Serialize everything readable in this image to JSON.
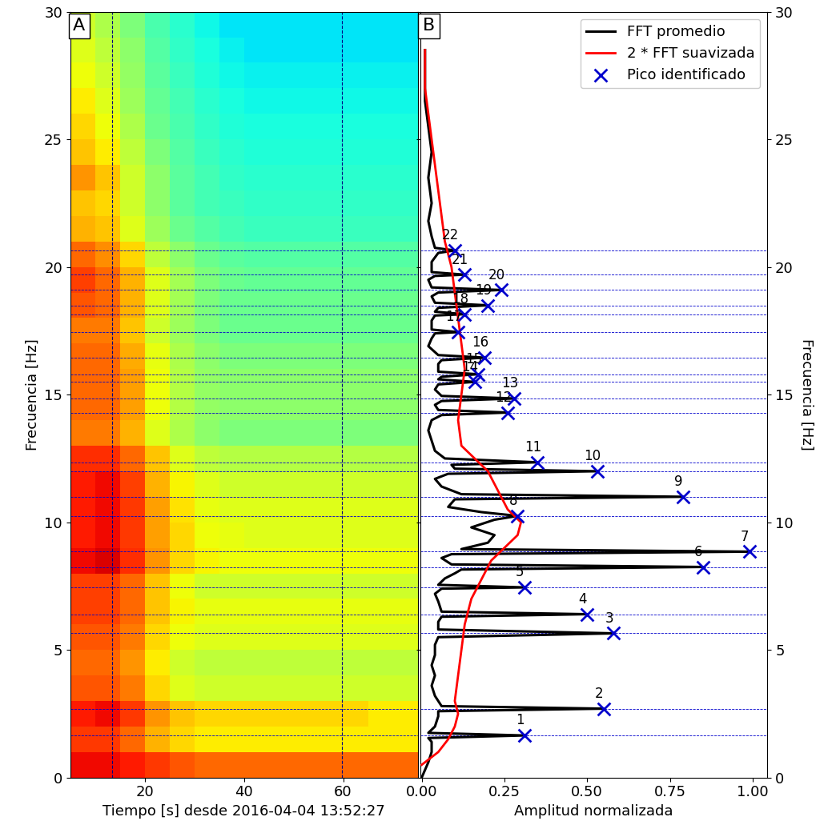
{
  "chart_data": [
    {
      "type": "heatmap",
      "panel_label": "A",
      "xlabel": "Tiempo [s] desde 2016-04-04 13:52:27",
      "ylabel": "Frecuencia [Hz]",
      "xlim": [
        5,
        75
      ],
      "xticks": [
        20,
        40,
        60
      ],
      "ylim": [
        0,
        30
      ],
      "yticks": [
        0,
        5,
        10,
        15,
        20,
        25,
        30
      ],
      "time_edges": [
        5,
        10,
        15,
        20,
        25,
        30,
        35,
        40,
        45,
        50,
        55,
        60,
        65,
        70,
        75
      ],
      "frequency_edges": [
        0,
        1,
        2,
        3,
        4,
        5,
        6,
        7,
        8,
        9,
        10,
        11,
        12,
        13,
        14,
        15,
        16,
        17,
        18,
        19,
        20,
        21,
        22,
        23,
        24,
        25,
        26,
        27,
        28,
        29,
        30
      ],
      "color_range": [
        0,
        1
      ],
      "window": [
        13.4,
        59.7
      ],
      "cells": [
        [
          0.9,
          0.9,
          0.88,
          0.85,
          0.82,
          0.8,
          0.8,
          0.8,
          0.8,
          0.8,
          0.8,
          0.8,
          0.8,
          0.8
        ],
        [
          0.85,
          0.85,
          0.8,
          0.72,
          0.68,
          0.66,
          0.66,
          0.66,
          0.66,
          0.66,
          0.66,
          0.66,
          0.66,
          0.66
        ],
        [
          0.88,
          0.9,
          0.85,
          0.75,
          0.7,
          0.68,
          0.68,
          0.68,
          0.68,
          0.68,
          0.68,
          0.68,
          0.66,
          0.66
        ],
        [
          0.82,
          0.82,
          0.78,
          0.68,
          0.62,
          0.6,
          0.6,
          0.6,
          0.6,
          0.6,
          0.6,
          0.6,
          0.6,
          0.6
        ],
        [
          0.8,
          0.8,
          0.75,
          0.66,
          0.6,
          0.58,
          0.58,
          0.58,
          0.58,
          0.58,
          0.58,
          0.58,
          0.58,
          0.58
        ],
        [
          0.82,
          0.82,
          0.78,
          0.68,
          0.64,
          0.62,
          0.62,
          0.62,
          0.62,
          0.62,
          0.62,
          0.62,
          0.62,
          0.62
        ],
        [
          0.84,
          0.84,
          0.8,
          0.7,
          0.65,
          0.63,
          0.63,
          0.63,
          0.63,
          0.63,
          0.63,
          0.63,
          0.63,
          0.63
        ],
        [
          0.84,
          0.84,
          0.8,
          0.7,
          0.64,
          0.6,
          0.6,
          0.6,
          0.6,
          0.6,
          0.6,
          0.6,
          0.6,
          0.6
        ],
        [
          0.9,
          0.92,
          0.86,
          0.75,
          0.68,
          0.65,
          0.64,
          0.64,
          0.64,
          0.64,
          0.64,
          0.64,
          0.64,
          0.64
        ],
        [
          0.88,
          0.9,
          0.85,
          0.74,
          0.68,
          0.64,
          0.63,
          0.62,
          0.62,
          0.62,
          0.62,
          0.62,
          0.62,
          0.62
        ],
        [
          0.88,
          0.9,
          0.85,
          0.74,
          0.67,
          0.63,
          0.62,
          0.62,
          0.62,
          0.62,
          0.62,
          0.62,
          0.62,
          0.62
        ],
        [
          0.88,
          0.9,
          0.84,
          0.72,
          0.65,
          0.62,
          0.6,
          0.6,
          0.6,
          0.6,
          0.6,
          0.6,
          0.6,
          0.6
        ],
        [
          0.86,
          0.86,
          0.8,
          0.7,
          0.62,
          0.58,
          0.57,
          0.57,
          0.57,
          0.57,
          0.57,
          0.57,
          0.57,
          0.57
        ],
        [
          0.78,
          0.78,
          0.72,
          0.62,
          0.56,
          0.52,
          0.5,
          0.5,
          0.5,
          0.5,
          0.5,
          0.5,
          0.5,
          0.5
        ],
        [
          0.8,
          0.8,
          0.74,
          0.64,
          0.57,
          0.53,
          0.52,
          0.52,
          0.52,
          0.52,
          0.52,
          0.52,
          0.52,
          0.52
        ],
        [
          0.8,
          0.8,
          0.74,
          0.64,
          0.57,
          0.53,
          0.52,
          0.52,
          0.52,
          0.52,
          0.52,
          0.52,
          0.52,
          0.52
        ],
        [
          0.8,
          0.8,
          0.73,
          0.63,
          0.56,
          0.52,
          0.5,
          0.5,
          0.5,
          0.5,
          0.5,
          0.5,
          0.5,
          0.5
        ],
        [
          0.78,
          0.78,
          0.7,
          0.6,
          0.54,
          0.5,
          0.48,
          0.48,
          0.48,
          0.48,
          0.48,
          0.48,
          0.48,
          0.48
        ],
        [
          0.82,
          0.8,
          0.72,
          0.62,
          0.55,
          0.5,
          0.48,
          0.48,
          0.48,
          0.48,
          0.48,
          0.48,
          0.48,
          0.48
        ],
        [
          0.84,
          0.8,
          0.72,
          0.62,
          0.55,
          0.5,
          0.48,
          0.47,
          0.47,
          0.47,
          0.47,
          0.47,
          0.47,
          0.47
        ],
        [
          0.8,
          0.76,
          0.68,
          0.58,
          0.52,
          0.48,
          0.46,
          0.45,
          0.45,
          0.45,
          0.45,
          0.45,
          0.45,
          0.45
        ],
        [
          0.72,
          0.7,
          0.62,
          0.54,
          0.48,
          0.45,
          0.43,
          0.42,
          0.42,
          0.42,
          0.42,
          0.42,
          0.42,
          0.42
        ],
        [
          0.7,
          0.68,
          0.6,
          0.52,
          0.46,
          0.43,
          0.42,
          0.41,
          0.41,
          0.41,
          0.41,
          0.41,
          0.41,
          0.41
        ],
        [
          0.75,
          0.7,
          0.6,
          0.52,
          0.46,
          0.43,
          0.41,
          0.4,
          0.4,
          0.4,
          0.4,
          0.4,
          0.4,
          0.4
        ],
        [
          0.7,
          0.66,
          0.58,
          0.5,
          0.45,
          0.42,
          0.4,
          0.39,
          0.39,
          0.39,
          0.39,
          0.39,
          0.39,
          0.39
        ],
        [
          0.68,
          0.64,
          0.56,
          0.48,
          0.44,
          0.41,
          0.39,
          0.38,
          0.38,
          0.38,
          0.38,
          0.38,
          0.38,
          0.38
        ],
        [
          0.66,
          0.62,
          0.54,
          0.47,
          0.43,
          0.4,
          0.38,
          0.37,
          0.37,
          0.37,
          0.37,
          0.37,
          0.37,
          0.37
        ],
        [
          0.64,
          0.6,
          0.53,
          0.46,
          0.42,
          0.39,
          0.37,
          0.36,
          0.36,
          0.36,
          0.36,
          0.36,
          0.36,
          0.36
        ],
        [
          0.62,
          0.58,
          0.52,
          0.45,
          0.41,
          0.38,
          0.36,
          0.35,
          0.35,
          0.35,
          0.35,
          0.35,
          0.35,
          0.35
        ],
        [
          0.6,
          0.56,
          0.5,
          0.44,
          0.4,
          0.37,
          0.35,
          0.35,
          0.35,
          0.35,
          0.35,
          0.35,
          0.35,
          0.35
        ]
      ]
    },
    {
      "type": "line",
      "orientation": "horizontal",
      "panel_label": "B",
      "xlabel": "Amplitud normalizada",
      "ylabel": "Frecuencia [Hz]",
      "xlim": [
        -0.005,
        1.045
      ],
      "xticks": [
        {
          "value": 0,
          "label": "0.00"
        },
        {
          "value": 0.25,
          "label": "0.25"
        },
        {
          "value": 0.5,
          "label": "0.50"
        },
        {
          "value": 0.75,
          "label": "0.75"
        },
        {
          "value": 1,
          "label": "1.00"
        }
      ],
      "ylim": [
        0,
        30
      ],
      "yticks": [
        0,
        5,
        10,
        15,
        20,
        25,
        30
      ],
      "legend": "upper right",
      "series": [
        {
          "name": "FFT promedio",
          "type": "line",
          "color": "#000000",
          "line_style": "solid",
          "frequency": [
            0.0,
            0.3,
            0.6,
            1.0,
            1.4,
            1.55,
            1.65,
            1.75,
            2.0,
            2.4,
            2.6,
            2.7,
            2.8,
            3.2,
            3.6,
            4.0,
            4.4,
            4.8,
            5.2,
            5.5,
            5.65,
            5.8,
            6.1,
            6.3,
            6.4,
            6.5,
            6.9,
            7.2,
            7.4,
            7.45,
            7.55,
            7.8,
            8.0,
            8.15,
            8.25,
            8.35,
            8.6,
            8.75,
            8.85,
            8.95,
            9.2,
            9.5,
            9.8,
            10.1,
            10.25,
            10.4,
            10.6,
            10.9,
            11.0,
            11.1,
            11.4,
            11.7,
            11.9,
            12.0,
            12.1,
            12.25,
            12.35,
            12.5,
            12.8,
            13.2,
            13.6,
            14.0,
            14.2,
            14.3,
            14.4,
            14.6,
            14.75,
            14.85,
            14.95,
            15.2,
            15.4,
            15.5,
            15.6,
            15.7,
            15.8,
            15.9,
            16.2,
            16.35,
            16.45,
            16.55,
            16.9,
            17.2,
            17.4,
            17.45,
            17.55,
            17.9,
            18.1,
            18.15,
            18.25,
            18.4,
            18.5,
            18.6,
            18.85,
            19.0,
            19.1,
            19.2,
            19.5,
            19.65,
            19.7,
            19.8,
            20.2,
            20.55,
            20.65,
            20.75,
            21.2,
            21.8,
            22.5,
            23.5,
            24.5,
            25.5,
            26.5,
            27.5,
            28.5
          ],
          "values": [
            0.0,
            0.01,
            0.02,
            0.03,
            0.03,
            0.02,
            0.31,
            0.02,
            0.04,
            0.05,
            0.05,
            0.55,
            0.06,
            0.04,
            0.03,
            0.04,
            0.03,
            0.04,
            0.04,
            0.05,
            0.58,
            0.05,
            0.05,
            0.06,
            0.5,
            0.06,
            0.05,
            0.04,
            0.06,
            0.31,
            0.05,
            0.07,
            0.1,
            0.12,
            0.85,
            0.09,
            0.06,
            0.09,
            0.99,
            0.12,
            0.2,
            0.22,
            0.15,
            0.22,
            0.29,
            0.18,
            0.08,
            0.1,
            0.79,
            0.12,
            0.06,
            0.04,
            0.08,
            0.53,
            0.1,
            0.09,
            0.35,
            0.07,
            0.04,
            0.03,
            0.02,
            0.03,
            0.06,
            0.26,
            0.05,
            0.04,
            0.06,
            0.28,
            0.06,
            0.04,
            0.05,
            0.16,
            0.05,
            0.06,
            0.17,
            0.05,
            0.05,
            0.06,
            0.19,
            0.05,
            0.02,
            0.03,
            0.04,
            0.11,
            0.03,
            0.03,
            0.04,
            0.13,
            0.04,
            0.05,
            0.2,
            0.04,
            0.03,
            0.05,
            0.24,
            0.03,
            0.02,
            0.04,
            0.13,
            0.03,
            0.03,
            0.05,
            0.1,
            0.04,
            0.03,
            0.02,
            0.03,
            0.02,
            0.03,
            0.02,
            0.01,
            0.01,
            0.01
          ]
        },
        {
          "name": "2 * FFT suavizada",
          "type": "line",
          "color": "#ff0000",
          "line_style": "solid",
          "frequency": [
            0.5,
            1.0,
            1.5,
            2.0,
            2.5,
            3.0,
            4.0,
            5.0,
            6.0,
            7.0,
            7.5,
            8.0,
            8.5,
            9.0,
            9.5,
            10.0,
            10.5,
            11.0,
            11.5,
            12.0,
            12.5,
            13.0,
            14.0,
            15.0,
            16.0,
            17.0,
            18.0,
            19.0,
            20.0,
            21.0,
            22.0,
            23.0,
            24.0,
            25.0,
            26.0,
            27.0,
            28.5
          ],
          "values": [
            0.0,
            0.05,
            0.08,
            0.1,
            0.11,
            0.1,
            0.11,
            0.12,
            0.13,
            0.15,
            0.17,
            0.19,
            0.21,
            0.25,
            0.29,
            0.3,
            0.26,
            0.24,
            0.22,
            0.2,
            0.16,
            0.12,
            0.11,
            0.12,
            0.13,
            0.12,
            0.11,
            0.1,
            0.09,
            0.07,
            0.06,
            0.05,
            0.04,
            0.03,
            0.02,
            0.01,
            0.01
          ]
        },
        {
          "name": "Pico identificado",
          "type": "scatter",
          "color": "#0000cc",
          "marker": "x",
          "frequency": [
            1.65,
            2.7,
            5.65,
            6.4,
            7.45,
            8.25,
            8.85,
            10.25,
            11.0,
            12.0,
            12.35,
            14.3,
            14.85,
            15.5,
            15.8,
            16.45,
            17.45,
            18.15,
            18.5,
            19.1,
            19.7,
            20.65
          ],
          "values": [
            0.31,
            0.55,
            0.58,
            0.5,
            0.31,
            0.85,
            0.99,
            0.29,
            0.79,
            0.53,
            0.35,
            0.26,
            0.28,
            0.16,
            0.17,
            0.19,
            0.11,
            0.13,
            0.2,
            0.24,
            0.13,
            0.1
          ],
          "labels": [
            1,
            2,
            3,
            4,
            5,
            6,
            7,
            8,
            9,
            10,
            11,
            12,
            13,
            14,
            15,
            16,
            17,
            18,
            19,
            20,
            21,
            22
          ]
        }
      ]
    }
  ]
}
